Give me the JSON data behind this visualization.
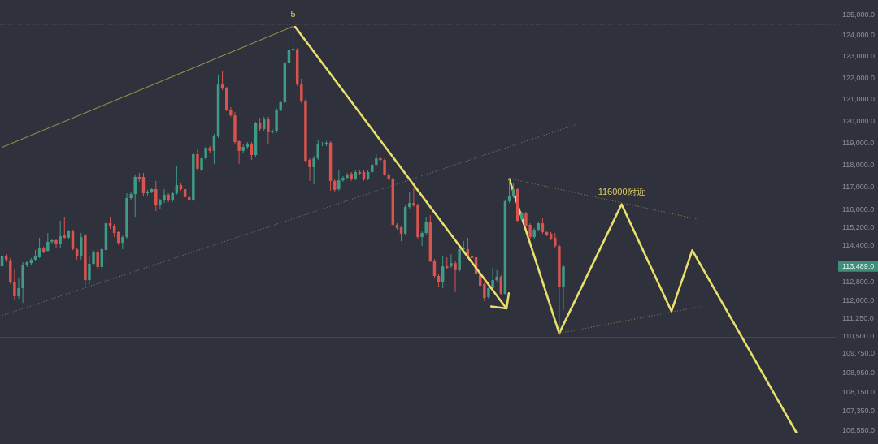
{
  "chart_data": {
    "type": "candlestick",
    "log": true,
    "tick_labels": "y",
    "categories": [
      null,
      null,
      null,
      null,
      null,
      null,
      null,
      null,
      null,
      null,
      null,
      null,
      null,
      null,
      null,
      null,
      null,
      null,
      null,
      null,
      null,
      null,
      null,
      null,
      null,
      null,
      null,
      null,
      null,
      null,
      null,
      null,
      null,
      null,
      null,
      null,
      null,
      null,
      null,
      null,
      null,
      null,
      null,
      null,
      null,
      null,
      null,
      null,
      null,
      null,
      null,
      null,
      null,
      null,
      null,
      null,
      null,
      null,
      null,
      null,
      null,
      null,
      null,
      null,
      null,
      null,
      null,
      null,
      null,
      null,
      null,
      null,
      null,
      null,
      null,
      null,
      null,
      null,
      null,
      null,
      null,
      null,
      null,
      null,
      null,
      null,
      null,
      null,
      null,
      null,
      null,
      null,
      null,
      null,
      null,
      null,
      null,
      null,
      null,
      null,
      null,
      null,
      null,
      null,
      null,
      null,
      null,
      null,
      null,
      null,
      null,
      null,
      null,
      null,
      null,
      null,
      null,
      null,
      null,
      null,
      null,
      null,
      null,
      null,
      null,
      null,
      null,
      null,
      null,
      null,
      null,
      null,
      null,
      null,
      null,
      null,
      null,
      null,
      null,
      null,
      null,
      null,
      null,
      null,
      null,
      null,
      null,
      null,
      null,
      null,
      null,
      null,
      null,
      null,
      null,
      null,
      null,
      null,
      null,
      null,
      null,
      null,
      null,
      null,
      null,
      null,
      null,
      null,
      null,
      null,
      null,
      null,
      null,
      null,
      null,
      null,
      null,
      null,
      null,
      null,
      null,
      null,
      null,
      null,
      null,
      null,
      null,
      null,
      null,
      null,
      null,
      null,
      null,
      null,
      null,
      null,
      null,
      null,
      null,
      null,
      null
    ],
    "ohlc": [
      [
        113500,
        114030,
        113430,
        113960
      ],
      [
        113960,
        114030,
        113680,
        113790
      ],
      [
        113760,
        113860,
        112730,
        112830
      ],
      [
        112830,
        113360,
        112030,
        112200
      ],
      [
        112200,
        113010,
        112100,
        112550
      ],
      [
        112550,
        113680,
        111920,
        113570
      ],
      [
        113540,
        113750,
        113470,
        113680
      ],
      [
        113640,
        113860,
        113570,
        113790
      ],
      [
        113790,
        114210,
        113720,
        113930
      ],
      [
        113890,
        114750,
        113860,
        114280
      ],
      [
        114280,
        114360,
        114070,
        114140
      ],
      [
        114180,
        114960,
        114110,
        114570
      ],
      [
        114570,
        114710,
        114500,
        114640
      ],
      [
        114640,
        114710,
        114320,
        114460
      ],
      [
        114460,
        115500,
        114320,
        114820
      ],
      [
        114850,
        115680,
        114680,
        114750
      ],
      [
        114750,
        115100,
        114680,
        115030
      ],
      [
        115030,
        115100,
        114210,
        114250
      ],
      [
        114250,
        114320,
        113790,
        113960
      ],
      [
        113960,
        114960,
        113790,
        114780
      ],
      [
        114850,
        114930,
        112660,
        112900
      ],
      [
        112900,
        113960,
        112730,
        113610
      ],
      [
        113610,
        114210,
        113540,
        114140
      ],
      [
        114140,
        114210,
        113400,
        113470
      ],
      [
        113470,
        114320,
        113330,
        114250
      ],
      [
        114210,
        115500,
        113540,
        115390
      ],
      [
        115390,
        115680,
        115140,
        115250
      ],
      [
        115280,
        115360,
        114780,
        114960
      ],
      [
        115000,
        115070,
        114430,
        114530
      ],
      [
        114530,
        114850,
        114250,
        114780
      ],
      [
        114780,
        116730,
        114710,
        116510
      ],
      [
        116510,
        116770,
        116400,
        116690
      ],
      [
        116690,
        117570,
        115680,
        117460
      ],
      [
        117460,
        117640,
        117240,
        117350
      ],
      [
        117460,
        117640,
        116620,
        116730
      ],
      [
        116730,
        116880,
        116620,
        116800
      ],
      [
        116800,
        116980,
        116730,
        116910
      ],
      [
        116910,
        117280,
        115930,
        116190
      ],
      [
        116190,
        116480,
        116040,
        116400
      ],
      [
        116400,
        116910,
        116290,
        116660
      ],
      [
        116660,
        116730,
        116330,
        116400
      ],
      [
        116400,
        116800,
        116330,
        116730
      ],
      [
        116730,
        117940,
        116660,
        117090
      ],
      [
        117090,
        117200,
        116840,
        116910
      ],
      [
        116910,
        116980,
        116480,
        116550
      ],
      [
        116550,
        116620,
        116370,
        116440
      ],
      [
        116440,
        118560,
        116370,
        118490
      ],
      [
        118490,
        118710,
        117750,
        117830
      ],
      [
        117790,
        118380,
        117720,
        118300
      ],
      [
        118300,
        118860,
        118230,
        118780
      ],
      [
        118780,
        118860,
        118560,
        118640
      ],
      [
        118640,
        119410,
        118050,
        119300
      ],
      [
        119300,
        122160,
        119230,
        121700
      ],
      [
        121700,
        122310,
        121440,
        121510
      ],
      [
        121510,
        121590,
        120460,
        120530
      ],
      [
        120530,
        120650,
        120200,
        120270
      ],
      [
        120270,
        120420,
        118970,
        119040
      ],
      [
        119080,
        119150,
        118050,
        118640
      ],
      [
        118640,
        118930,
        118560,
        118820
      ],
      [
        118820,
        119040,
        118750,
        118970
      ],
      [
        118970,
        119040,
        118230,
        118450
      ],
      [
        118450,
        119970,
        118380,
        119900
      ],
      [
        119900,
        120160,
        119560,
        119640
      ],
      [
        119640,
        120200,
        119560,
        120120
      ],
      [
        120120,
        120200,
        118970,
        119490
      ],
      [
        119490,
        119640,
        119410,
        119560
      ],
      [
        119530,
        120610,
        119450,
        120530
      ],
      [
        120530,
        120950,
        120460,
        120870
      ],
      [
        120870,
        122810,
        120800,
        122730
      ],
      [
        122730,
        123690,
        122660,
        123310
      ],
      [
        123310,
        124230,
        123230,
        123380
      ],
      [
        123350,
        123420,
        121630,
        121700
      ],
      [
        121700,
        121970,
        120840,
        120910
      ],
      [
        120950,
        121020,
        118120,
        118190
      ],
      [
        118230,
        118300,
        117280,
        117900
      ],
      [
        117900,
        118410,
        117130,
        118300
      ],
      [
        118300,
        119120,
        118230,
        118970
      ],
      [
        118930,
        119040,
        118860,
        118970
      ],
      [
        118930,
        119080,
        118860,
        119010
      ],
      [
        119010,
        119080,
        116840,
        117280
      ],
      [
        117280,
        117350,
        116800,
        116880
      ],
      [
        116910,
        117750,
        116840,
        117310
      ],
      [
        117310,
        117500,
        117240,
        117420
      ],
      [
        117420,
        117640,
        117350,
        117570
      ],
      [
        117610,
        117680,
        117280,
        117350
      ],
      [
        117390,
        117750,
        117310,
        117680
      ],
      [
        117680,
        117750,
        117530,
        117610
      ],
      [
        117680,
        117750,
        117280,
        117350
      ],
      [
        117390,
        117750,
        117310,
        117680
      ],
      [
        117680,
        118080,
        117610,
        118010
      ],
      [
        118010,
        118490,
        117940,
        118300
      ],
      [
        118300,
        118380,
        118160,
        118230
      ],
      [
        118230,
        118300,
        117500,
        117570
      ],
      [
        117570,
        117640,
        117310,
        117390
      ],
      [
        117390,
        117460,
        115210,
        115320
      ],
      [
        115320,
        115390,
        115100,
        115180
      ],
      [
        115210,
        115280,
        114600,
        114930
      ],
      [
        114930,
        116190,
        114850,
        116110
      ],
      [
        116110,
        116770,
        116040,
        116290
      ],
      [
        116290,
        116950,
        116110,
        116190
      ],
      [
        116190,
        116260,
        114710,
        114780
      ],
      [
        114780,
        115030,
        114390,
        114960
      ],
      [
        114960,
        115680,
        114890,
        115460
      ],
      [
        115460,
        115750,
        113680,
        113750
      ],
      [
        113750,
        113820,
        113010,
        113080
      ],
      [
        113080,
        113150,
        112620,
        112800
      ],
      [
        112830,
        113960,
        112550,
        113500
      ],
      [
        113500,
        113890,
        113360,
        113430
      ],
      [
        113500,
        114030,
        113430,
        113640
      ],
      [
        113640,
        113720,
        112380,
        113330
      ],
      [
        113330,
        114320,
        113260,
        114250
      ],
      [
        114250,
        114600,
        114180,
        114320
      ],
      [
        114250,
        114750,
        113860,
        113930
      ],
      [
        113930,
        114000,
        113790,
        113860
      ],
      [
        113890,
        113960,
        113080,
        113150
      ],
      [
        113150,
        113220,
        112590,
        112660
      ],
      [
        112730,
        112800,
        111990,
        112130
      ],
      [
        112170,
        112620,
        112100,
        112550
      ],
      [
        112550,
        113430,
        112480,
        112900
      ],
      [
        112900,
        113330,
        112830,
        113050
      ],
      [
        113050,
        113120,
        112240,
        112310
      ],
      [
        112310,
        116440,
        112240,
        116370
      ],
      [
        116370,
        117350,
        116290,
        116580
      ],
      [
        116580,
        117170,
        116510,
        116910
      ],
      [
        116910,
        116980,
        115430,
        115500
      ],
      [
        115570,
        115900,
        115500,
        115820
      ],
      [
        115820,
        115900,
        115210,
        115280
      ],
      [
        115320,
        115390,
        114710,
        114780
      ],
      [
        114780,
        115180,
        114710,
        115100
      ],
      [
        115100,
        115460,
        115030,
        115390
      ],
      [
        115390,
        115640,
        114930,
        115000
      ],
      [
        115000,
        115070,
        114820,
        114890
      ],
      [
        114930,
        115000,
        114640,
        114710
      ],
      [
        114750,
        114960,
        114320,
        114390
      ],
      [
        114390,
        114460,
        110540,
        112590
      ],
      [
        112590,
        113540,
        111610,
        113490
      ],
      null,
      null,
      null,
      null,
      null,
      null,
      null,
      null,
      null,
      null,
      null,
      null,
      null,
      null,
      null,
      null,
      null,
      null,
      null,
      null,
      null,
      null,
      null,
      null,
      null,
      null,
      null,
      null,
      null,
      null,
      null,
      null,
      null,
      null,
      null,
      null,
      null,
      null,
      null,
      null,
      null,
      null,
      null,
      null,
      null,
      null,
      null,
      null,
      null,
      null,
      null,
      null,
      null,
      null,
      null,
      null,
      null,
      null,
      null,
      null,
      null,
      null,
      null,
      null,
      null
    ],
    "colors": [
      "#3f9b85",
      "#d9534f",
      "#d9534f",
      "#d9534f",
      "#3f9b85",
      "#3f9b85",
      "#3f9b85",
      "#3f9b85",
      "#3f9b85",
      "#3f9b85",
      "#d9534f",
      "#3f9b85",
      "#3f9b85",
      "#d9534f",
      "#3f9b85",
      "#d9534f",
      "#3f9b85",
      "#d9534f",
      "#d9534f",
      "#3f9b85",
      "#d9534f",
      "#3f9b85",
      "#3f9b85",
      "#d9534f",
      "#3f9b85",
      "#3f9b85",
      "#d9534f",
      "#d9534f",
      "#d9534f",
      "#3f9b85",
      "#3f9b85",
      "#3f9b85",
      "#3f9b85",
      "#d9534f",
      "#d9534f",
      "#3f9b85",
      "#3f9b85",
      "#d9534f",
      "#3f9b85",
      "#3f9b85",
      "#d9534f",
      "#3f9b85",
      "#3f9b85",
      "#d9534f",
      "#d9534f",
      "#d9534f",
      "#3f9b85",
      "#d9534f",
      "#3f9b85",
      "#3f9b85",
      "#d9534f",
      "#3f9b85",
      "#3f9b85",
      "#d9534f",
      "#d9534f",
      "#d9534f",
      "#d9534f",
      "#d9534f",
      "#3f9b85",
      "#3f9b85",
      "#d9534f",
      "#3f9b85",
      "#d9534f",
      "#3f9b85",
      "#d9534f",
      "#3f9b85",
      "#3f9b85",
      "#3f9b85",
      "#3f9b85",
      "#3f9b85",
      "#3f9b85",
      "#d9534f",
      "#d9534f",
      "#d9534f",
      "#d9534f",
      "#3f9b85",
      "#3f9b85",
      "#3f9b85",
      "#3f9b85",
      "#d9534f",
      "#d9534f",
      "#3f9b85",
      "#3f9b85",
      "#3f9b85",
      "#d9534f",
      "#3f9b85",
      "#d9534f",
      "#d9534f",
      "#3f9b85",
      "#3f9b85",
      "#3f9b85",
      "#d9534f",
      "#d9534f",
      "#d9534f",
      "#d9534f",
      "#d9534f",
      "#d9534f",
      "#3f9b85",
      "#3f9b85",
      "#d9534f",
      "#d9534f",
      "#3f9b85",
      "#3f9b85",
      "#d9534f",
      "#d9534f",
      "#d9534f",
      "#3f9b85",
      "#d9534f",
      "#3f9b85",
      "#d9534f",
      "#3f9b85",
      "#3f9b85",
      "#d9534f",
      "#d9534f",
      "#d9534f",
      "#d9534f",
      "#d9534f",
      "#3f9b85",
      "#3f9b85",
      "#3f9b85",
      "#d9534f",
      "#3f9b85",
      "#3f9b85",
      "#3f9b85",
      "#d9534f",
      "#3f9b85",
      "#d9534f",
      "#d9534f",
      "#3f9b85",
      "#3f9b85",
      "#d9534f",
      "#d9534f",
      "#d9534f",
      "#d9534f",
      "#d9534f",
      "#3f9b85",
      null,
      null,
      null,
      null,
      null,
      null,
      null,
      null,
      null,
      null,
      null,
      null,
      null,
      null,
      null,
      null,
      null,
      null,
      null,
      null,
      null,
      null,
      null,
      null,
      null,
      null,
      null,
      null,
      null,
      null,
      null,
      null,
      null,
      null,
      null,
      null,
      null,
      null,
      null,
      null,
      null,
      null,
      null,
      null,
      null,
      null,
      null,
      null,
      null,
      null,
      null,
      null,
      null,
      null,
      null,
      null,
      null,
      null,
      null,
      null,
      null,
      null,
      null,
      null,
      null
    ],
    "series": [
      {
        "type": "line",
        "color": "#e8df6c",
        "line_style": "solid",
        "values": [
          null,
          null,
          null,
          null,
          null,
          null,
          null,
          null,
          null,
          null,
          null,
          null,
          null,
          null,
          null,
          null,
          null,
          null,
          null,
          null,
          null,
          null,
          null,
          null,
          null,
          null,
          null,
          null,
          null,
          null,
          null,
          null,
          null,
          null,
          null,
          null,
          null,
          null,
          null,
          null,
          null,
          null,
          null,
          null,
          null,
          null,
          null,
          null,
          null,
          null,
          null,
          null,
          null,
          null,
          null,
          null,
          null,
          null,
          null,
          null,
          null,
          null,
          null,
          null,
          null,
          null,
          null,
          null,
          null,
          null,
          null,
          null,
          null,
          null,
          null,
          null,
          null,
          null,
          null,
          null,
          null,
          null,
          null,
          null,
          null,
          null,
          null,
          null,
          null,
          null,
          null,
          null,
          null,
          null,
          null,
          null,
          null,
          null,
          null,
          null,
          null,
          null,
          null,
          null,
          null,
          null,
          null,
          null,
          null,
          null,
          null,
          null,
          null,
          null,
          null,
          null,
          null,
          null,
          null,
          null,
          null,
          null,
          117360,
          null,
          null,
          null,
          null,
          null,
          null,
          null,
          null,
          null,
          null,
          null,
          110620,
          null,
          null,
          null,
          null,
          null,
          null,
          null,
          null,
          null,
          null,
          null,
          null,
          null,
          null,
          116230,
          null,
          null,
          null,
          null,
          null,
          null,
          null,
          null,
          null,
          null,
          null,
          111560,
          null,
          null,
          null,
          null,
          114200,
          null,
          null,
          null,
          null,
          null,
          null,
          null,
          null,
          null,
          null,
          null,
          null,
          null,
          null,
          null,
          null,
          null,
          null,
          null,
          null,
          null,
          null,
          null,
          null,
          106500,
          null,
          null,
          null,
          null,
          null,
          null,
          null,
          null,
          null
        ]
      },
      {
        "type": "line",
        "color": "#8e8b4c",
        "line_style": "solid",
        "values": [
          118800,
          null,
          null,
          null,
          null,
          null,
          null,
          null,
          null,
          null,
          null,
          null,
          null,
          null,
          null,
          null,
          null,
          null,
          null,
          null,
          null,
          null,
          null,
          null,
          null,
          null,
          null,
          null,
          null,
          null,
          null,
          null,
          null,
          null,
          null,
          null,
          null,
          null,
          null,
          null,
          null,
          null,
          null,
          null,
          null,
          null,
          null,
          null,
          null,
          null,
          null,
          null,
          null,
          null,
          null,
          null,
          null,
          null,
          null,
          null,
          null,
          null,
          null,
          null,
          null,
          null,
          null,
          null,
          null,
          null,
          124440,
          null,
          null,
          null,
          null,
          null,
          null,
          null,
          null,
          null,
          null,
          null,
          null,
          null,
          null,
          null,
          null,
          null,
          null,
          null,
          null,
          null,
          null,
          null,
          null,
          null,
          null,
          null,
          null,
          null,
          null,
          null,
          null,
          null,
          null,
          null,
          null,
          null,
          null,
          null,
          null,
          null,
          null,
          null,
          null,
          null,
          null,
          null,
          null,
          null,
          null,
          null,
          null,
          null,
          null,
          null,
          null,
          null,
          null,
          null,
          null,
          null,
          null,
          null,
          null,
          null,
          null,
          null,
          null,
          null,
          null,
          null,
          null,
          null,
          null,
          null,
          null,
          null,
          null,
          null,
          null,
          null,
          null,
          null,
          null,
          null,
          null,
          null,
          null,
          null,
          null,
          null,
          null,
          null,
          null,
          null,
          null,
          null,
          null,
          null,
          null,
          null,
          null,
          null,
          null,
          null,
          null,
          null,
          null,
          null,
          null,
          null,
          null,
          null,
          null,
          null,
          null,
          null,
          null,
          null,
          null,
          null,
          null,
          null,
          null,
          null,
          null,
          null,
          null,
          null,
          null
        ]
      },
      {
        "type": "line",
        "color": "#767983",
        "line_style": "dotted",
        "values": [
          111380,
          null,
          null,
          null,
          null,
          null,
          null,
          null,
          null,
          null,
          null,
          null,
          null,
          null,
          null,
          null,
          null,
          null,
          null,
          null,
          null,
          null,
          null,
          null,
          null,
          null,
          null,
          null,
          null,
          null,
          null,
          null,
          null,
          null,
          null,
          null,
          null,
          null,
          null,
          null,
          null,
          null,
          null,
          null,
          null,
          null,
          null,
          null,
          null,
          null,
          null,
          null,
          null,
          null,
          null,
          null,
          null,
          null,
          null,
          null,
          null,
          null,
          null,
          null,
          null,
          null,
          null,
          null,
          null,
          null,
          null,
          null,
          null,
          null,
          null,
          null,
          null,
          null,
          null,
          null,
          null,
          null,
          null,
          null,
          null,
          null,
          null,
          null,
          null,
          null,
          null,
          null,
          null,
          null,
          null,
          null,
          null,
          null,
          null,
          null,
          null,
          null,
          null,
          null,
          null,
          null,
          null,
          null,
          null,
          null,
          null,
          null,
          null,
          null,
          null,
          null,
          null,
          null,
          null,
          null,
          null,
          null,
          null,
          null,
          null,
          null,
          null,
          null,
          null,
          null,
          null,
          null,
          null,
          null,
          null,
          null,
          null,
          null,
          119840,
          null,
          null,
          null,
          null,
          null,
          null,
          null,
          null,
          null,
          null,
          null,
          null,
          null,
          null,
          null,
          null,
          null,
          null,
          null,
          null,
          null,
          null,
          null,
          null,
          null,
          null,
          null,
          null,
          null,
          null,
          null,
          null,
          null,
          null,
          null,
          null,
          null,
          null,
          null,
          null,
          null,
          null,
          null,
          null,
          null,
          null,
          null,
          null,
          null,
          null,
          null,
          null,
          null,
          null,
          null,
          null,
          null,
          null,
          null,
          null,
          null,
          null
        ]
      },
      {
        "type": "line",
        "color": "#888450",
        "line_style": "dotted",
        "values": [
          null,
          null,
          null,
          null,
          null,
          null,
          null,
          null,
          null,
          null,
          null,
          null,
          null,
          null,
          null,
          null,
          null,
          null,
          null,
          null,
          null,
          null,
          null,
          null,
          null,
          null,
          null,
          null,
          null,
          null,
          null,
          null,
          null,
          null,
          null,
          null,
          null,
          null,
          null,
          null,
          null,
          null,
          null,
          null,
          null,
          null,
          null,
          null,
          null,
          null,
          null,
          null,
          null,
          null,
          null,
          null,
          null,
          null,
          null,
          null,
          null,
          null,
          null,
          null,
          null,
          null,
          null,
          null,
          null,
          null,
          null,
          null,
          null,
          null,
          null,
          null,
          null,
          null,
          null,
          null,
          null,
          null,
          null,
          null,
          null,
          null,
          null,
          null,
          null,
          null,
          null,
          null,
          null,
          null,
          null,
          null,
          null,
          null,
          null,
          null,
          null,
          null,
          null,
          null,
          null,
          null,
          null,
          null,
          null,
          null,
          null,
          null,
          null,
          null,
          null,
          null,
          null,
          null,
          null,
          null,
          null,
          null,
          117390,
          null,
          null,
          null,
          null,
          null,
          null,
          null,
          null,
          null,
          null,
          null,
          null,
          null,
          null,
          null,
          null,
          null,
          null,
          null,
          null,
          null,
          null,
          null,
          null,
          null,
          null,
          null,
          null,
          null,
          null,
          null,
          null,
          null,
          null,
          null,
          null,
          null,
          null,
          null,
          null,
          null,
          null,
          null,
          null,
          115580,
          null,
          null,
          null,
          null,
          null,
          null,
          null,
          null,
          null,
          null,
          null,
          null,
          null,
          null,
          null,
          null,
          null,
          null,
          null,
          null,
          null,
          null,
          null,
          null,
          null,
          null,
          null,
          null,
          null,
          null,
          null,
          null,
          null
        ]
      },
      {
        "type": "line",
        "color": "#888450",
        "line_style": "dotted",
        "values": [
          null,
          null,
          null,
          null,
          null,
          null,
          null,
          null,
          null,
          null,
          null,
          null,
          null,
          null,
          null,
          null,
          null,
          null,
          null,
          null,
          null,
          null,
          null,
          null,
          null,
          null,
          null,
          null,
          null,
          null,
          null,
          null,
          null,
          null,
          null,
          null,
          null,
          null,
          null,
          null,
          null,
          null,
          null,
          null,
          null,
          null,
          null,
          null,
          null,
          null,
          null,
          null,
          null,
          null,
          null,
          null,
          null,
          null,
          null,
          null,
          null,
          null,
          null,
          null,
          null,
          null,
          null,
          null,
          null,
          null,
          null,
          null,
          null,
          null,
          null,
          null,
          null,
          null,
          null,
          null,
          null,
          null,
          null,
          null,
          null,
          null,
          null,
          null,
          null,
          null,
          null,
          null,
          null,
          null,
          null,
          null,
          null,
          null,
          null,
          null,
          null,
          null,
          null,
          null,
          null,
          null,
          null,
          null,
          null,
          null,
          null,
          null,
          null,
          null,
          null,
          null,
          null,
          null,
          null,
          null,
          null,
          null,
          null,
          null,
          null,
          null,
          null,
          null,
          null,
          null,
          null,
          null,
          null,
          null,
          110620,
          null,
          null,
          null,
          null,
          null,
          null,
          null,
          null,
          null,
          null,
          null,
          null,
          null,
          null,
          null,
          null,
          null,
          null,
          null,
          null,
          null,
          null,
          null,
          null,
          null,
          null,
          null,
          null,
          null,
          null,
          null,
          null,
          null,
          111760,
          null,
          null,
          null,
          null,
          null,
          null,
          null,
          null,
          null,
          null,
          null,
          null,
          null,
          null,
          null,
          null,
          null,
          null,
          null,
          null,
          null,
          null,
          null,
          null,
          null,
          null,
          null,
          null,
          null,
          null,
          null,
          null
        ]
      }
    ],
    "ylim": [
      106020,
      125710
    ],
    "yticks": [
      {
        "value": 125000,
        "label": "125,000.0"
      },
      {
        "value": 124000,
        "label": "124,000.0"
      },
      {
        "value": 123000,
        "label": "123,000.0"
      },
      {
        "value": 122000,
        "label": "122,000.0"
      },
      {
        "value": 121000,
        "label": "121,000.0"
      },
      {
        "value": 120000,
        "label": "120,000.0"
      },
      {
        "value": 119000,
        "label": "119,000.0"
      },
      {
        "value": 118000,
        "label": "118,000.0"
      },
      {
        "value": 117000,
        "label": "117,000.0"
      },
      {
        "value": 116000,
        "label": "116,000.0"
      },
      {
        "value": 115200,
        "label": "115,200.0"
      },
      {
        "value": 114400,
        "label": "114,400.0"
      },
      {
        "value": 112800,
        "label": "112,800.0"
      },
      {
        "value": 112000,
        "label": "112,000.0"
      },
      {
        "value": 111250,
        "label": "111,250.0"
      },
      {
        "value": 110500,
        "label": "110,500.0"
      },
      {
        "value": 109750,
        "label": "109,750.0"
      },
      {
        "value": 108950,
        "label": "108,950.0"
      },
      {
        "value": 108150,
        "label": "108,150.0"
      },
      {
        "value": 107350,
        "label": "107,350.0"
      },
      {
        "value": 106550,
        "label": "106,550.0"
      }
    ],
    "ref_lines": [
      {
        "axis": "y",
        "value": 124520,
        "color": "#4b4d57",
        "line_style": "dotted"
      },
      {
        "axis": "y",
        "value": 110450,
        "color": "#474953",
        "line_style": "solid"
      }
    ],
    "annotations": [
      {
        "text": "5",
        "y": 124440
      },
      {
        "text": "116000附近",
        "y": 116230
      },
      "113,489.0"
    ]
  }
}
